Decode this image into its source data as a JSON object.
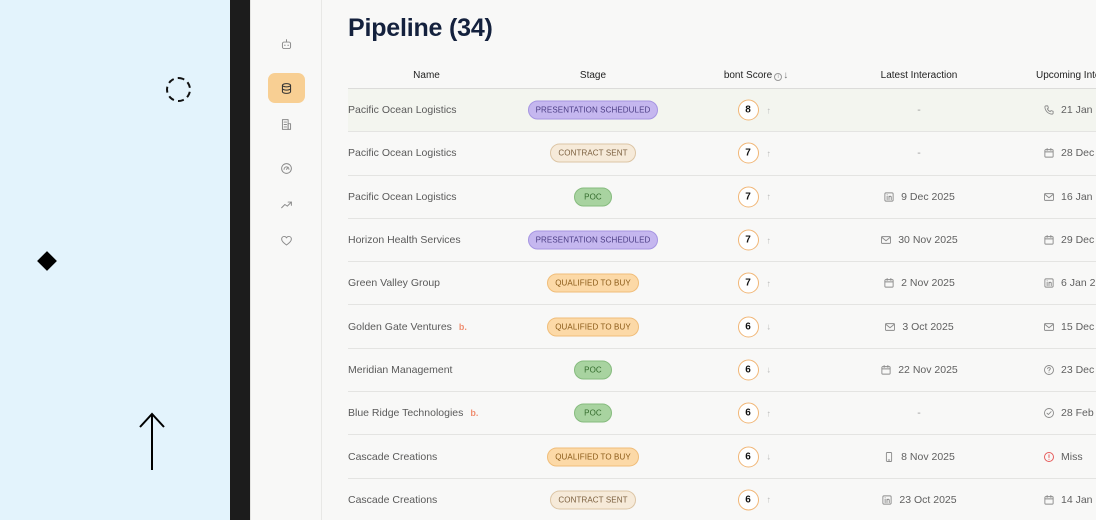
{
  "page": {
    "title": "Pipeline (34)"
  },
  "nav": {
    "items": [
      {
        "name": "bot-icon",
        "active": false
      },
      {
        "name": "database-icon",
        "active": true
      },
      {
        "name": "building-icon",
        "active": false
      },
      {
        "name": "gauge-icon",
        "active": false
      },
      {
        "name": "trending-up-icon",
        "active": false
      },
      {
        "name": "heart-icon",
        "active": false
      }
    ]
  },
  "table": {
    "headers": {
      "name": "Name",
      "stage": "Stage",
      "score": "bont Score",
      "latest": "Latest Interaction",
      "upcoming": "Upcoming Inte"
    },
    "rows": [
      {
        "name": "Pacific Ocean Logistics",
        "flag": "",
        "stage": "PRESENTATION SCHEDULED",
        "score": "8",
        "trend": "↑",
        "latest_icon": "none",
        "latest": "-",
        "upcoming_icon": "phone-icon",
        "upcoming": "21 Jan"
      },
      {
        "name": "Pacific Ocean Logistics",
        "flag": "",
        "stage": "CONTRACT SENT",
        "score": "7",
        "trend": "↑",
        "latest_icon": "none",
        "latest": "-",
        "upcoming_icon": "calendar-icon",
        "upcoming": "28 Dec"
      },
      {
        "name": "Pacific Ocean Logistics",
        "flag": "",
        "stage": "POC",
        "score": "7",
        "trend": "↑",
        "latest_icon": "linkedin-icon",
        "latest": "9 Dec 2025",
        "upcoming_icon": "mail-icon",
        "upcoming": "16 Jan"
      },
      {
        "name": "Horizon Health Services",
        "flag": "",
        "stage": "PRESENTATION SCHEDULED",
        "score": "7",
        "trend": "↑",
        "latest_icon": "mail-icon",
        "latest": "30 Nov 2025",
        "upcoming_icon": "calendar-icon",
        "upcoming": "29 Dec"
      },
      {
        "name": "Green Valley Group",
        "flag": "",
        "stage": "QUALIFIED TO BUY",
        "score": "7",
        "trend": "↑",
        "latest_icon": "calendar-icon",
        "latest": "2 Nov 2025",
        "upcoming_icon": "linkedin-icon",
        "upcoming": "6 Jan 2"
      },
      {
        "name": "Golden Gate Ventures",
        "flag": "b.",
        "stage": "QUALIFIED TO BUY",
        "score": "6",
        "trend": "↓",
        "latest_icon": "mail-icon",
        "latest": "3 Oct 2025",
        "upcoming_icon": "mail-icon",
        "upcoming": "15 Dec"
      },
      {
        "name": "Meridian Management",
        "flag": "",
        "stage": "POC",
        "score": "6",
        "trend": "↓",
        "latest_icon": "calendar-icon",
        "latest": "22 Nov 2025",
        "upcoming_icon": "help-circle-icon",
        "upcoming": "23 Dec"
      },
      {
        "name": "Blue Ridge Technologies",
        "flag": "b.",
        "stage": "POC",
        "score": "6",
        "trend": "↑",
        "latest_icon": "none",
        "latest": "-",
        "upcoming_icon": "check-circle-icon",
        "upcoming": "28 Feb"
      },
      {
        "name": "Cascade Creations",
        "flag": "",
        "stage": "QUALIFIED TO BUY",
        "score": "6",
        "trend": "↓",
        "latest_icon": "mobile-icon",
        "latest": "8 Nov 2025",
        "upcoming_icon": "alert-circle-icon",
        "upcoming": "Miss"
      },
      {
        "name": "Cascade Creations",
        "flag": "",
        "stage": "CONTRACT SENT",
        "score": "6",
        "trend": "↑",
        "latest_icon": "linkedin-icon",
        "latest": "23 Oct 2025",
        "upcoming_icon": "calendar-icon",
        "upcoming": "14 Jan"
      }
    ]
  },
  "colors": {
    "accent": "#f8cf93",
    "title": "#14213d",
    "score_ring": "#f1b676",
    "alert": "#e65a5a"
  }
}
